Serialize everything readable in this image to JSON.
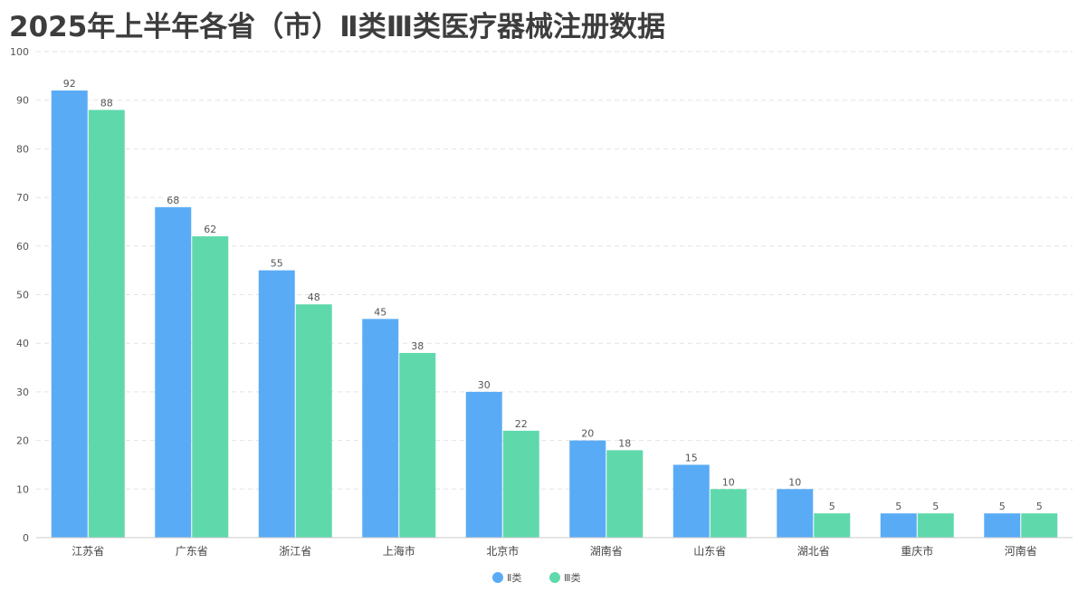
{
  "chart_data": {
    "type": "bar",
    "title": "2025年上半年各省（市）Ⅱ类Ⅲ类医疗器械注册数据",
    "categories": [
      "江苏省",
      "广东省",
      "浙江省",
      "上海市",
      "北京市",
      "湖南省",
      "山东省",
      "湖北省",
      "重庆市",
      "河南省"
    ],
    "series": [
      {
        "name": "Ⅱ类",
        "values": [
          92,
          68,
          55,
          45,
          30,
          20,
          15,
          10,
          5,
          5
        ],
        "color": "#5aabf5"
      },
      {
        "name": "Ⅲ类",
        "values": [
          88,
          62,
          48,
          38,
          22,
          18,
          10,
          5,
          5,
          5
        ],
        "color": "#5fd9ab"
      }
    ],
    "ylim": [
      0,
      100
    ],
    "yticks": [
      0,
      10,
      20,
      30,
      40,
      50,
      60,
      70,
      80,
      90,
      100
    ],
    "xlabel": "",
    "ylabel": "",
    "grid": true,
    "legend": "bottom-center",
    "data_labels": true
  }
}
